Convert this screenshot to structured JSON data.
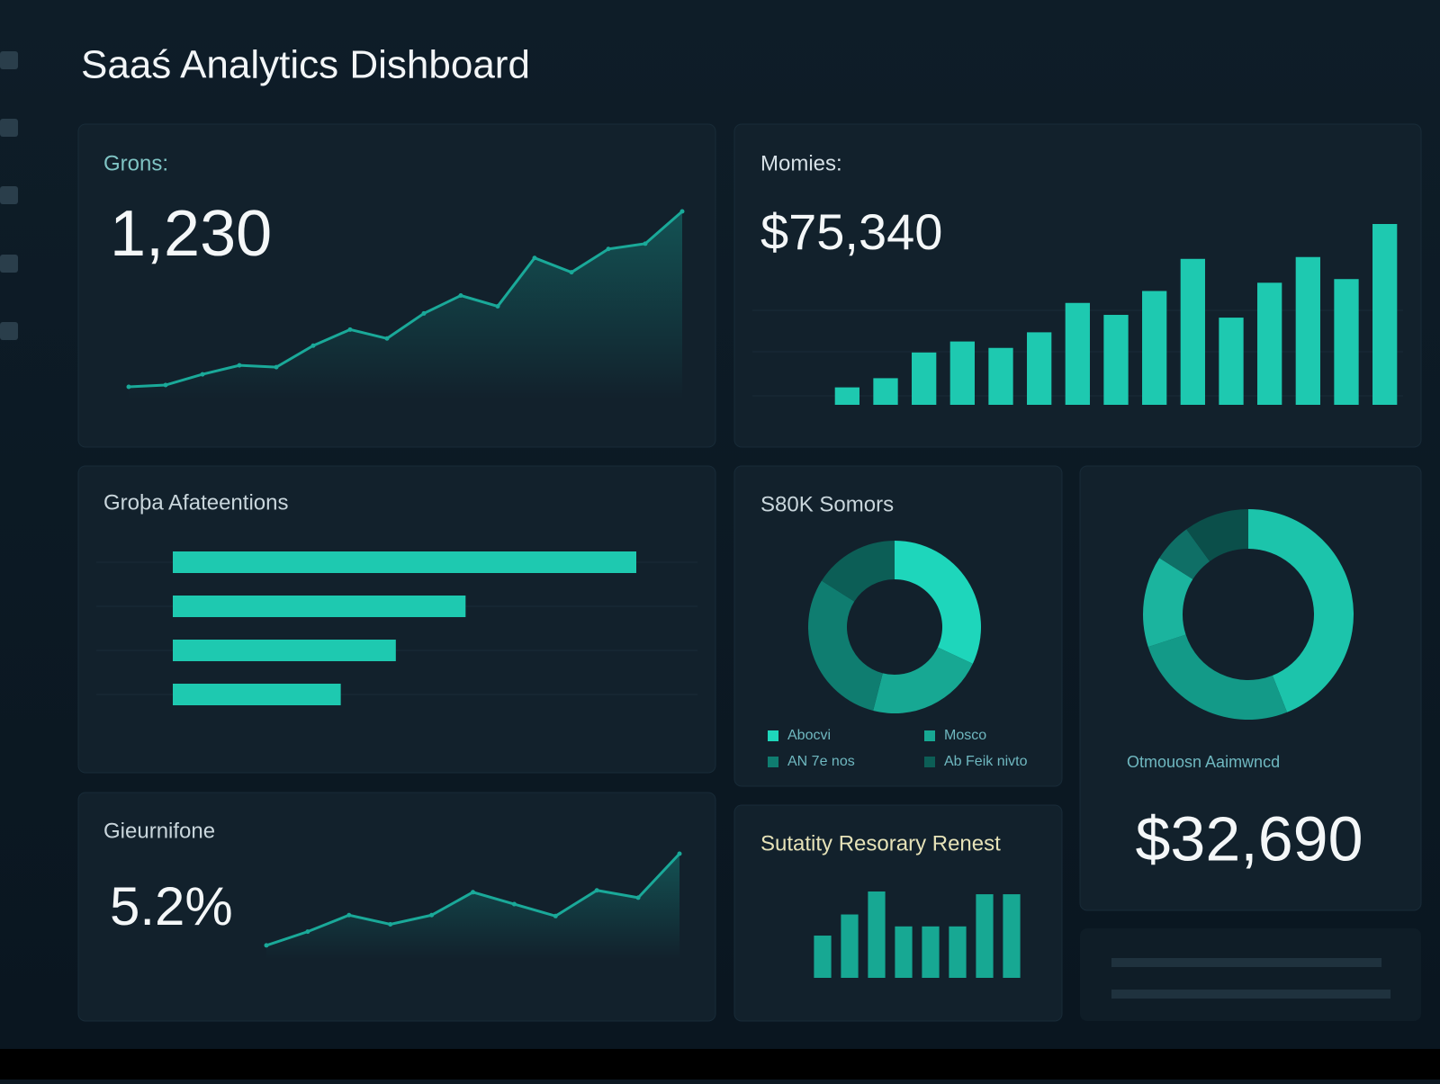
{
  "header": {
    "title": "Saaś Analytics Dishboard"
  },
  "cards": [
    {
      "label": "Grons:",
      "value": "1,230",
      "chart": {
        "type": "line",
        "color": "#1aa999",
        "values": [
          2,
          3,
          9,
          14,
          13,
          25,
          34,
          29,
          43,
          53,
          47,
          74,
          66,
          79,
          82,
          100
        ]
      }
    },
    {
      "label": "Momies:",
      "value": "$75,340",
      "chart": {
        "type": "bar",
        "color": "#1ec9b0",
        "values": [
          19,
          29,
          57,
          69,
          62,
          79,
          111,
          98,
          124,
          159,
          95,
          133,
          161,
          137,
          197
        ]
      }
    },
    {
      "label": "Groþa Afateentions",
      "chart": {
        "type": "hbar",
        "color": "#1ec9b0",
        "values": [
          505,
          319,
          243,
          183
        ]
      }
    },
    {
      "label": "S80K Somors",
      "chart": {
        "type": "donut",
        "colors": [
          "#1ed6bb",
          "#17a893",
          "#0f7d70",
          "#0c5e56"
        ],
        "values": [
          32,
          22,
          30,
          16
        ],
        "legend": [
          "Abocvi",
          "Mosco",
          "AN 7e nos",
          "Ab Feik nivto"
        ]
      }
    },
    {
      "label": "Otmouosn Aaimwncd",
      "value": "$32,690",
      "chart": {
        "type": "donut",
        "colors": [
          "#1cc4ab",
          "#139a88",
          "#1bb49e",
          "#0f6f66",
          "#0b4f4a"
        ],
        "values": [
          44,
          26,
          14,
          6,
          10
        ]
      }
    },
    {
      "label": "Gieurnifone",
      "value": "5.2%",
      "chart": {
        "type": "line",
        "color": "#1aa999",
        "values": [
          5,
          20,
          38,
          28,
          38,
          63,
          50,
          37,
          65,
          57,
          105
        ]
      }
    },
    {
      "label": "Sutatity Resorary Renest",
      "chart": {
        "type": "bar",
        "color": "#17a893",
        "values": [
          46,
          69,
          94,
          56,
          56,
          56,
          91,
          91
        ]
      }
    }
  ]
}
